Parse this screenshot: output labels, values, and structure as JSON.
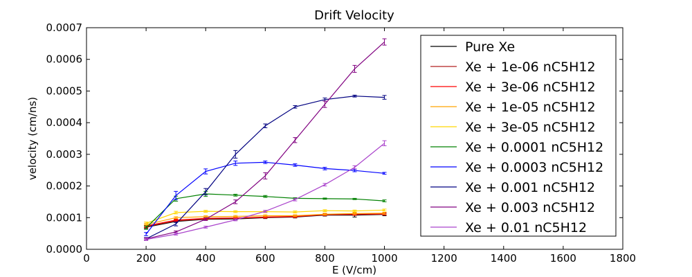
{
  "chart_data": {
    "type": "line",
    "title": "Drift Velocity",
    "xlabel": "E (V/cm)",
    "ylabel": "velocity (cm/ns)",
    "xlim": [
      0,
      1800
    ],
    "ylim": [
      0,
      0.0007
    ],
    "x_ticks": [
      "0",
      "200",
      "400",
      "600",
      "800",
      "1000",
      "1200",
      "1400",
      "1600",
      "1800"
    ],
    "y_ticks": [
      "0.0000",
      "0.0001",
      "0.0002",
      "0.0003",
      "0.0004",
      "0.0005",
      "0.0006",
      "0.0007"
    ],
    "grid": false,
    "legend_position": "top-right",
    "x": [
      200,
      300,
      400,
      500,
      600,
      700,
      800,
      900,
      1000
    ],
    "series": [
      {
        "name": "Pure Xe",
        "color": "#000000",
        "values": [
          7e-05,
          8.8e-05,
          9.5e-05,
          9.6e-05,
          0.0001,
          0.000102,
          0.000108,
          0.000108,
          0.00011
        ],
        "errors": [
          4e-06,
          3e-06,
          3e-06,
          3e-06,
          3e-06,
          3e-06,
          3e-06,
          6e-06,
          4e-06
        ]
      },
      {
        "name": "Xe + 1e-06 nC5H12",
        "color": "#b22222",
        "values": [
          7.2e-05,
          9e-05,
          9.6e-05,
          9.8e-05,
          0.000101,
          0.000103,
          0.000109,
          0.00011,
          0.000111
        ],
        "errors": [
          4e-06,
          3e-06,
          3e-06,
          3e-06,
          3e-06,
          3e-06,
          3e-06,
          3e-06,
          3e-06
        ]
      },
      {
        "name": "Xe + 3e-06 nC5H12",
        "color": "#ff0000",
        "values": [
          7.4e-05,
          9.2e-05,
          9.8e-05,
          9.9e-05,
          0.000102,
          0.000104,
          0.00011,
          0.000111,
          0.000112
        ],
        "errors": [
          4e-06,
          3e-06,
          3e-06,
          3e-06,
          3e-06,
          3e-06,
          3e-06,
          3e-06,
          3e-06
        ]
      },
      {
        "name": "Xe + 1e-05 nC5H12",
        "color": "#ffa500",
        "values": [
          7.8e-05,
          0.0001,
          0.000103,
          0.000104,
          0.000106,
          0.000106,
          0.000111,
          0.000113,
          0.000114
        ],
        "errors": [
          4e-06,
          3e-06,
          3e-06,
          3e-06,
          3e-06,
          3e-06,
          3e-06,
          3e-06,
          3e-06
        ]
      },
      {
        "name": "Xe + 3e-05 nC5H12",
        "color": "#ffd700",
        "values": [
          8.2e-05,
          0.000116,
          0.00012,
          0.000119,
          0.000119,
          0.000118,
          0.000122,
          0.000121,
          0.000124
        ],
        "errors": [
          4e-06,
          4e-06,
          3e-06,
          3e-06,
          3e-06,
          3e-06,
          3e-06,
          3e-06,
          3e-06
        ]
      },
      {
        "name": "Xe + 0.0001 nC5H12",
        "color": "#008000",
        "values": [
          6.8e-05,
          0.00016,
          0.000175,
          0.000171,
          0.000167,
          0.000161,
          0.00016,
          0.000159,
          0.000153
        ],
        "errors": [
          5e-06,
          8e-06,
          8e-06,
          3e-06,
          3e-06,
          2e-06,
          2e-06,
          2e-06,
          3e-06
        ]
      },
      {
        "name": "Xe + 0.0003 nC5H12",
        "color": "#0000ff",
        "values": [
          4.8e-05,
          0.00017,
          0.000246,
          0.000272,
          0.000275,
          0.000266,
          0.000255,
          0.000249,
          0.00024
        ],
        "errors": [
          5e-06,
          1.3e-05,
          8e-06,
          7e-06,
          4e-06,
          4e-06,
          4e-06,
          4e-06,
          3e-06
        ]
      },
      {
        "name": "Xe + 0.001 nC5H12",
        "color": "#000080",
        "values": [
          3.3e-05,
          8e-05,
          0.000182,
          0.0003,
          0.00039,
          0.00045,
          0.000473,
          0.000484,
          0.00048
        ],
        "errors": [
          4e-06,
          6e-06,
          1e-05,
          1.2e-05,
          6e-06,
          4e-06,
          5e-06,
          3e-06,
          6e-06
        ]
      },
      {
        "name": "Xe + 0.003 nC5H12",
        "color": "#800080",
        "values": [
          3.3e-05,
          5.5e-05,
          9.5e-05,
          0.00015,
          0.000232,
          0.000345,
          0.000458,
          0.00057,
          0.000655
        ],
        "errors": [
          3e-06,
          3e-06,
          4e-06,
          6e-06,
          1e-05,
          8e-06,
          1e-05,
          1.1e-05,
          1e-05
        ]
      },
      {
        "name": "Xe + 0.01 nC5H12",
        "color": "#aa44cc",
        "values": [
          3.1e-05,
          4.8e-05,
          7e-05,
          9.3e-05,
          0.00012,
          0.000157,
          0.000204,
          0.000259,
          0.000335
        ],
        "errors": [
          3e-06,
          3e-06,
          3e-06,
          3e-06,
          3e-06,
          4e-06,
          4e-06,
          5e-06,
          8e-06
        ]
      }
    ]
  }
}
